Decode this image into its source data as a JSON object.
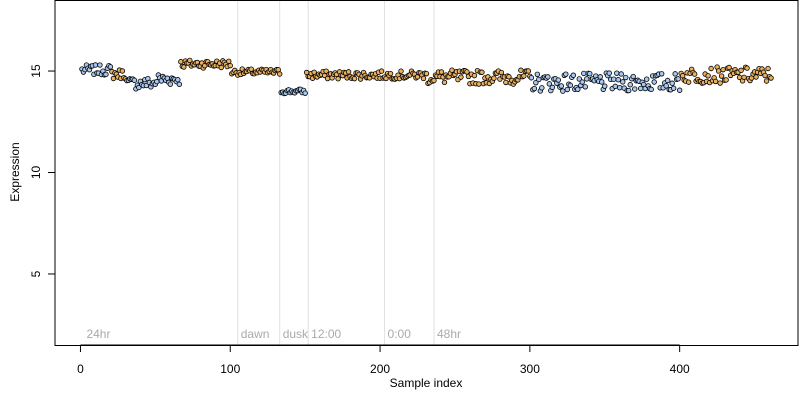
{
  "chart_data": {
    "type": "scatter",
    "title": "",
    "xlabel": "Sample index",
    "ylabel": "Expression",
    "xlim": [
      -17,
      479
    ],
    "ylim": [
      1.5,
      18.5
    ],
    "x_ticks": [
      0,
      100,
      200,
      300,
      400
    ],
    "y_ticks": [
      5,
      10,
      15
    ],
    "grid": false,
    "legend": "none",
    "colors": {
      "light_blue": "#a8c8f0",
      "orange": "#e8b060",
      "marker_edge": "#000000",
      "phase_line": "#e0e0e0",
      "phase_text": "#aaaaaa"
    },
    "phase_markers": [
      {
        "x": 2,
        "label": "24hr"
      },
      {
        "x": 105,
        "label": "dawn"
      },
      {
        "x": 133,
        "label": "dusk"
      },
      {
        "x": 152,
        "label": "12:00"
      },
      {
        "x": 203,
        "label": "0:00"
      },
      {
        "x": 236,
        "label": "48hr"
      }
    ],
    "segments": [
      {
        "x_start": 1,
        "x_end": 20,
        "level": 15.05,
        "spread": 0.25,
        "color": "light_blue"
      },
      {
        "x_start": 21,
        "x_end": 30,
        "level": 14.85,
        "spread": 0.25,
        "color": "orange"
      },
      {
        "x_start": 31,
        "x_end": 50,
        "level": 14.4,
        "spread": 0.3,
        "color": "light_blue"
      },
      {
        "x_start": 51,
        "x_end": 66,
        "level": 14.6,
        "spread": 0.3,
        "color": "light_blue"
      },
      {
        "x_start": 67,
        "x_end": 100,
        "level": 15.35,
        "spread": 0.2,
        "color": "orange"
      },
      {
        "x_start": 101,
        "x_end": 133,
        "level": 14.95,
        "spread": 0.15,
        "color": "orange"
      },
      {
        "x_start": 134,
        "x_end": 150,
        "level": 14.0,
        "spread": 0.12,
        "color": "light_blue"
      },
      {
        "x_start": 151,
        "x_end": 230,
        "level": 14.8,
        "spread": 0.2,
        "color": "orange"
      },
      {
        "x_start": 231,
        "x_end": 300,
        "level": 14.7,
        "spread": 0.35,
        "color": "orange"
      },
      {
        "x_start": 301,
        "x_end": 400,
        "level": 14.45,
        "spread": 0.45,
        "color": "light_blue"
      },
      {
        "x_start": 401,
        "x_end": 461,
        "level": 14.8,
        "spread": 0.4,
        "color": "orange"
      }
    ]
  }
}
